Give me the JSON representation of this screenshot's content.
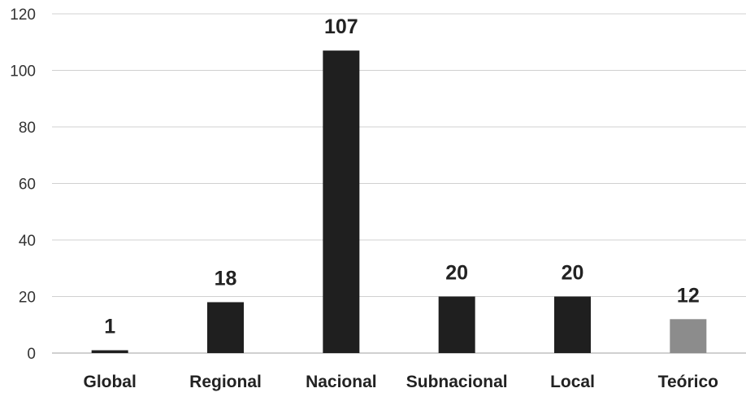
{
  "chart_data": {
    "type": "bar",
    "title": "",
    "xlabel": "",
    "ylabel": "",
    "categories": [
      "Global",
      "Regional",
      "Nacional",
      "Subnacional",
      "Local",
      "Teórico"
    ],
    "values": [
      1,
      18,
      107,
      20,
      20,
      12
    ],
    "data_labels": [
      "1",
      "18",
      "107",
      "20",
      "20",
      "12"
    ],
    "ylim": [
      0,
      120
    ],
    "y_ticks": [
      0,
      20,
      40,
      60,
      80,
      100,
      120
    ],
    "y_tick_labels": [
      "0",
      "20",
      "40",
      "60",
      "80",
      "100",
      "120"
    ],
    "grid": true,
    "legend": "none",
    "colors": {
      "Global": "#1f1f1f",
      "Regional": "#1f1f1f",
      "Nacional": "#1f1f1f",
      "Subnacional": "#1f1f1f",
      "Local": "#1f1f1f",
      "Teórico": "#8c8c8c"
    }
  }
}
